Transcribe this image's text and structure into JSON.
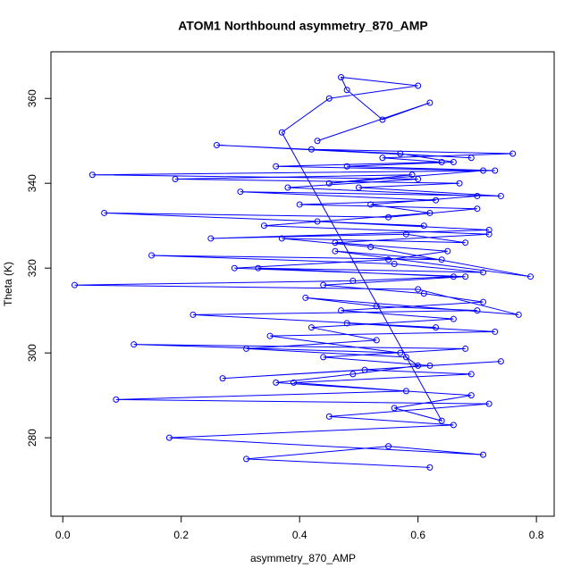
{
  "chart_data": {
    "type": "line",
    "title": "ATOM1 Northbound asymmetry_870_AMP",
    "x_label": "asymmetry_870_AMP",
    "y_label": "Theta (K)",
    "color": "#0000ff",
    "markers": "circle",
    "x": [
      0.62,
      0.31,
      0.55,
      0.71,
      0.18,
      0.66,
      0.45,
      0.72,
      0.09,
      0.58,
      0.39,
      0.69,
      0.51,
      0.27,
      0.74,
      0.62,
      0.44,
      0.68,
      0.12,
      0.57,
      0.35,
      0.73,
      0.48,
      0.63,
      0.22,
      0.7,
      0.53,
      0.41,
      0.77,
      0.6,
      0.02,
      0.49,
      0.66,
      0.33,
      0.71,
      0.56,
      0.15,
      0.64,
      0.46,
      0.79,
      0.52,
      0.37,
      0.68,
      0.58,
      0.25,
      0.72,
      0.43,
      0.61,
      0.07,
      0.55,
      0.7,
      0.4,
      0.63,
      0.3,
      0.74,
      0.5,
      0.67,
      0.19,
      0.59,
      0.45,
      0.71,
      0.36,
      0.64,
      0.54,
      0.76,
      0.42,
      0.69,
      0.26,
      0.57,
      0.66,
      0.48,
      0.73,
      0.05,
      0.6,
      0.38,
      0.7,
      0.52,
      0.62,
      0.34,
      0.72,
      0.46,
      0.65,
      0.55,
      0.29,
      0.68,
      0.44,
      0.61,
      0.71,
      0.47,
      0.66,
      0.42,
      0.53,
      0.31,
      0.58,
      0.6,
      0.49,
      0.36,
      0.69,
      0.56,
      0.64,
      0.37,
      0.45,
      0.6,
      0.47,
      0.48,
      0.54,
      0.62,
      0.43
    ],
    "values": [
      273,
      275,
      278,
      276,
      280,
      283,
      285,
      288,
      289,
      291,
      293,
      295,
      296,
      294,
      298,
      297,
      299,
      301,
      302,
      300,
      304,
      305,
      307,
      306,
      309,
      310,
      311,
      313,
      309,
      315,
      316,
      317,
      318,
      320,
      319,
      321,
      323,
      322,
      324,
      318,
      325,
      327,
      326,
      328,
      327,
      329,
      331,
      330,
      333,
      332,
      334,
      335,
      336,
      338,
      337,
      339,
      340,
      341,
      342,
      340,
      343,
      344,
      345,
      346,
      347,
      348,
      346,
      349,
      347,
      345,
      344,
      343,
      342,
      341,
      339,
      337,
      335,
      333,
      330,
      328,
      326,
      324,
      322,
      320,
      318,
      316,
      314,
      312,
      310,
      308,
      306,
      303,
      301,
      299,
      297,
      295,
      293,
      290,
      287,
      284,
      352,
      360,
      363,
      365,
      362,
      355,
      359,
      350
    ],
    "xlim": [
      -0.02,
      0.83
    ],
    "ylim": [
      261.5,
      371
    ],
    "xticks": [
      {
        "value": 0,
        "label": "0.0"
      },
      0.2,
      0.4,
      0.6,
      0.8
    ],
    "yticks": [
      280,
      300,
      320,
      340,
      360
    ]
  }
}
